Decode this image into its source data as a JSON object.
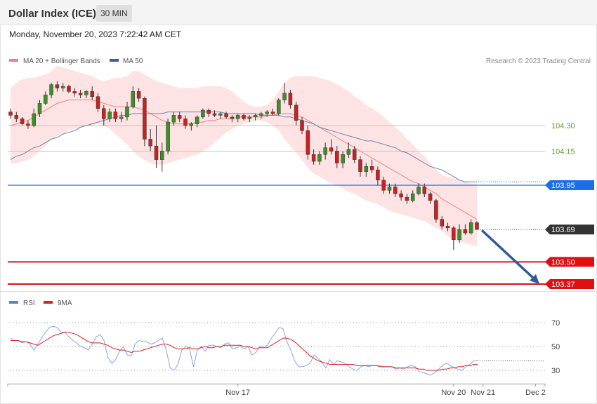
{
  "header": {
    "title": "Dollar Index (ICE)",
    "timeframe": "30 MIN",
    "datetime": "Monday, November 20, 2023 7:22:42 AM CET"
  },
  "legend": {
    "items": [
      {
        "label": "MA 20 + Bollinger Bands",
        "color": "#f08080"
      },
      {
        "label": "MA 50",
        "color": "#3a5f9a"
      }
    ],
    "copyright": "Research © 2023 Trading Central"
  },
  "rsi_legend": {
    "items": [
      {
        "label": "RSI",
        "color": "#5b7fd6"
      },
      {
        "label": "9MA",
        "color": "#e02020"
      }
    ]
  },
  "chart_data": [
    {
      "type": "candlestick",
      "ylim": [
        103.3,
        104.75
      ],
      "price_levels": [
        {
          "value": 104.3,
          "label": "104.30",
          "kind": "target",
          "color": "#5aa02c"
        },
        {
          "value": 104.15,
          "label": "104.15",
          "kind": "target",
          "color": "#5aa02c"
        },
        {
          "value": 103.95,
          "label": "103.95",
          "kind": "pivot",
          "color": "#1a6fe6"
        },
        {
          "value": 103.69,
          "label": "103.69",
          "kind": "last",
          "color": "#333333"
        },
        {
          "value": 103.5,
          "label": "103.50",
          "kind": "support",
          "color": "#e01010"
        },
        {
          "value": 103.37,
          "label": "103.37",
          "kind": "support",
          "color": "#e01010"
        }
      ],
      "forecast_arrow": {
        "from": 103.69,
        "to": 103.37
      },
      "x_tick_labels": [
        {
          "label": "Nov 17",
          "index": 39
        },
        {
          "label": "Nov 20",
          "index": 76
        },
        {
          "label": "Nov 21",
          "index": 89
        },
        {
          "label": "Dec 2",
          "index": 98
        }
      ],
      "candles": [
        [
          104.38,
          104.4,
          104.34,
          104.36
        ],
        [
          104.36,
          104.38,
          104.32,
          104.34
        ],
        [
          104.34,
          104.35,
          104.3,
          104.31
        ],
        [
          104.31,
          104.33,
          104.28,
          104.3
        ],
        [
          104.3,
          104.4,
          104.29,
          104.37
        ],
        [
          104.37,
          104.45,
          104.35,
          104.43
        ],
        [
          104.43,
          104.5,
          104.42,
          104.48
        ],
        [
          104.48,
          104.55,
          104.46,
          104.54
        ],
        [
          104.54,
          104.56,
          104.5,
          104.52
        ],
        [
          104.52,
          104.55,
          104.5,
          104.53
        ],
        [
          104.53,
          104.54,
          104.49,
          104.5
        ],
        [
          104.5,
          104.52,
          104.47,
          104.49
        ],
        [
          104.49,
          104.51,
          104.46,
          104.48
        ],
        [
          104.48,
          104.51,
          104.46,
          104.5
        ],
        [
          104.5,
          104.53,
          104.45,
          104.47
        ],
        [
          104.47,
          104.49,
          104.38,
          104.4
        ],
        [
          104.4,
          104.42,
          104.3,
          104.34
        ],
        [
          104.34,
          104.4,
          104.32,
          104.38
        ],
        [
          104.38,
          104.4,
          104.32,
          104.34
        ],
        [
          104.34,
          104.38,
          104.32,
          104.35
        ],
        [
          104.35,
          104.44,
          104.33,
          104.41
        ],
        [
          104.41,
          104.53,
          104.4,
          104.5
        ],
        [
          104.5,
          104.52,
          104.44,
          104.46
        ],
        [
          104.46,
          104.47,
          104.18,
          104.22
        ],
        [
          104.22,
          104.28,
          104.15,
          104.18
        ],
        [
          104.18,
          104.3,
          104.05,
          104.1
        ],
        [
          104.1,
          104.2,
          104.03,
          104.15
        ],
        [
          104.15,
          104.34,
          104.13,
          104.32
        ],
        [
          104.32,
          104.38,
          104.3,
          104.36
        ],
        [
          104.36,
          104.38,
          104.32,
          104.34
        ],
        [
          104.34,
          104.36,
          104.28,
          104.3
        ],
        [
          104.3,
          104.32,
          104.27,
          104.31
        ],
        [
          104.31,
          104.36,
          104.29,
          104.35
        ],
        [
          104.35,
          104.4,
          104.34,
          104.39
        ],
        [
          104.39,
          104.4,
          104.35,
          104.37
        ],
        [
          104.37,
          104.39,
          104.35,
          104.36
        ],
        [
          104.36,
          104.38,
          104.34,
          104.37
        ],
        [
          104.37,
          104.38,
          104.34,
          104.35
        ],
        [
          104.35,
          104.36,
          104.32,
          104.34
        ],
        [
          104.34,
          104.37,
          104.32,
          104.36
        ],
        [
          104.36,
          104.37,
          104.33,
          104.34
        ],
        [
          104.34,
          104.36,
          104.32,
          104.35
        ],
        [
          104.35,
          104.37,
          104.33,
          104.36
        ],
        [
          104.36,
          104.38,
          104.34,
          104.37
        ],
        [
          104.37,
          104.39,
          104.35,
          104.38
        ],
        [
          104.38,
          104.4,
          104.36,
          104.37
        ],
        [
          104.37,
          104.46,
          104.36,
          104.45
        ],
        [
          104.45,
          104.55,
          104.43,
          104.49
        ],
        [
          104.49,
          104.51,
          104.4,
          104.42
        ],
        [
          104.42,
          104.44,
          104.3,
          104.33
        ],
        [
          104.33,
          104.35,
          104.25,
          104.27
        ],
        [
          104.27,
          104.3,
          104.1,
          104.13
        ],
        [
          104.13,
          104.16,
          104.07,
          104.09
        ],
        [
          104.09,
          104.15,
          104.07,
          104.13
        ],
        [
          104.13,
          104.2,
          104.1,
          104.17
        ],
        [
          104.17,
          104.22,
          104.13,
          104.15
        ],
        [
          104.15,
          104.18,
          104.05,
          104.08
        ],
        [
          104.08,
          104.15,
          104.05,
          104.13
        ],
        [
          104.13,
          104.2,
          104.11,
          104.16
        ],
        [
          104.16,
          104.18,
          104.08,
          104.1
        ],
        [
          104.1,
          104.12,
          104.0,
          104.03
        ],
        [
          104.03,
          104.08,
          104.0,
          104.06
        ],
        [
          104.06,
          104.1,
          104.02,
          104.04
        ],
        [
          104.04,
          104.06,
          103.95,
          103.98
        ],
        [
          103.98,
          104.0,
          103.9,
          103.92
        ],
        [
          103.92,
          103.96,
          103.9,
          103.94
        ],
        [
          103.94,
          103.96,
          103.88,
          103.9
        ],
        [
          103.9,
          103.92,
          103.86,
          103.88
        ],
        [
          103.88,
          103.9,
          103.84,
          103.86
        ],
        [
          103.86,
          103.92,
          103.85,
          103.9
        ],
        [
          103.9,
          103.96,
          103.89,
          103.94
        ],
        [
          103.94,
          103.96,
          103.88,
          103.9
        ],
        [
          103.9,
          103.91,
          103.84,
          103.86
        ],
        [
          103.86,
          103.87,
          103.73,
          103.75
        ],
        [
          103.75,
          103.77,
          103.69,
          103.71
        ],
        [
          103.71,
          103.73,
          103.68,
          103.7
        ],
        [
          103.7,
          103.71,
          103.57,
          103.63
        ],
        [
          103.63,
          103.72,
          103.61,
          103.69
        ],
        [
          103.69,
          103.72,
          103.66,
          103.67
        ],
        [
          103.67,
          103.75,
          103.66,
          103.73
        ],
        [
          103.73,
          103.74,
          103.69,
          103.69
        ]
      ],
      "ma20": [
        104.3,
        104.31,
        104.32,
        104.33,
        104.35,
        104.37,
        104.39,
        104.41,
        104.43,
        104.44,
        104.45,
        104.45,
        104.45,
        104.45,
        104.45,
        104.44,
        104.43,
        104.42,
        104.41,
        104.41,
        104.41,
        104.41,
        104.4,
        104.39,
        104.37,
        104.35,
        104.33,
        104.32,
        104.31,
        104.31,
        104.31,
        104.31,
        104.32,
        104.32,
        104.33,
        104.33,
        104.34,
        104.34,
        104.34,
        104.35,
        104.35,
        104.35,
        104.35,
        104.35,
        104.36,
        104.36,
        104.37,
        104.37,
        104.37,
        104.36,
        104.35,
        104.33,
        104.31,
        104.29,
        104.27,
        104.25,
        104.23,
        104.21,
        104.19,
        104.17,
        104.15,
        104.13,
        104.11,
        104.09,
        104.07,
        104.05,
        104.03,
        104.01,
        103.99,
        103.97,
        103.96,
        103.94,
        103.92,
        103.9,
        103.87,
        103.85,
        103.83,
        103.81,
        103.79,
        103.77,
        103.75
      ],
      "bb_upper": [
        104.52,
        104.55,
        104.57,
        104.58,
        104.58,
        104.59,
        104.6,
        104.62,
        104.65,
        104.64,
        104.63,
        104.62,
        104.61,
        104.6,
        104.59,
        104.57,
        104.56,
        104.57,
        104.58,
        104.58,
        104.59,
        104.62,
        104.62,
        104.6,
        104.58,
        104.56,
        104.55,
        104.54,
        104.53,
        104.52,
        104.52,
        104.52,
        104.52,
        104.53,
        104.53,
        104.53,
        104.53,
        104.52,
        104.5,
        104.47,
        104.44,
        104.42,
        104.41,
        104.41,
        104.42,
        104.45,
        104.5,
        104.55,
        104.58,
        104.59,
        104.59,
        104.59,
        104.59,
        104.58,
        104.57,
        104.56,
        104.54,
        104.52,
        104.5,
        104.47,
        104.45,
        104.42,
        104.4,
        104.38,
        104.35,
        104.32,
        104.29,
        104.26,
        104.22,
        104.19,
        104.15,
        104.12,
        104.08,
        104.04,
        104.01,
        104.0,
        103.99,
        103.98,
        103.97,
        103.96,
        103.96
      ],
      "bb_lower": [
        104.08,
        104.08,
        104.09,
        104.1,
        104.12,
        104.15,
        104.18,
        104.22,
        104.24,
        104.25,
        104.27,
        104.28,
        104.29,
        104.3,
        104.3,
        104.31,
        104.3,
        104.28,
        104.25,
        104.22,
        104.19,
        104.15,
        104.12,
        104.1,
        104.08,
        104.07,
        104.07,
        104.08,
        104.09,
        104.1,
        104.11,
        104.12,
        104.13,
        104.15,
        104.17,
        104.2,
        104.23,
        104.26,
        104.28,
        104.3,
        104.31,
        104.32,
        104.33,
        104.33,
        104.32,
        104.3,
        104.27,
        104.22,
        104.18,
        104.14,
        104.1,
        104.05,
        104.02,
        104.0,
        103.98,
        103.96,
        103.95,
        103.93,
        103.91,
        103.9,
        103.88,
        103.86,
        103.85,
        103.84,
        103.82,
        103.8,
        103.79,
        103.78,
        103.77,
        103.76,
        103.75,
        103.74,
        103.72,
        103.7,
        103.68,
        103.65,
        103.63,
        103.62,
        103.61,
        103.6,
        103.59
      ],
      "ma50": [
        104.1,
        104.12,
        104.13,
        104.15,
        104.17,
        104.18,
        104.2,
        104.22,
        104.23,
        104.25,
        104.26,
        104.27,
        104.29,
        104.3,
        104.31,
        104.32,
        104.33,
        104.34,
        104.35,
        104.36,
        104.36,
        104.37,
        104.37,
        104.37,
        104.37,
        104.37,
        104.37,
        104.38,
        104.38,
        104.38,
        104.38,
        104.38,
        104.38,
        104.38,
        104.38,
        104.38,
        104.38,
        104.37,
        104.37,
        104.37,
        104.37,
        104.37,
        104.37,
        104.36,
        104.36,
        104.36,
        104.36,
        104.35,
        104.35,
        104.34,
        104.33,
        104.32,
        104.31,
        104.29,
        104.28,
        104.27,
        104.26,
        104.25,
        104.24,
        104.23,
        104.22,
        104.21,
        104.21,
        104.2,
        104.19,
        104.18,
        104.17,
        104.15,
        104.14,
        104.12,
        104.1,
        104.08,
        104.06,
        104.05,
        104.04,
        104.02,
        104.0,
        103.98,
        103.97,
        103.97,
        103.97
      ]
    },
    {
      "type": "line",
      "title": "RSI",
      "ylim": [
        15,
        85
      ],
      "hlines": [
        70,
        50,
        30
      ],
      "rsi": [
        57,
        55,
        55,
        53,
        54,
        52,
        47,
        52,
        57,
        62,
        66,
        67,
        66,
        62,
        62,
        58,
        55,
        53,
        50,
        49,
        47,
        52,
        58,
        60,
        55,
        41,
        36,
        39,
        46,
        50,
        43,
        42,
        52,
        55,
        54,
        54,
        52,
        53,
        55,
        57,
        47,
        32,
        30,
        35,
        47,
        50,
        48,
        33,
        47,
        50,
        46,
        51,
        51,
        50,
        49,
        52,
        53,
        48,
        49,
        50,
        48,
        50,
        43,
        45,
        50,
        50,
        51,
        57,
        61,
        66,
        65,
        54,
        47,
        38,
        33,
        33,
        34,
        36,
        43,
        40,
        37,
        32,
        39,
        35,
        38,
        37,
        36,
        33,
        31,
        30,
        33,
        34,
        33,
        34,
        34,
        34,
        33,
        33,
        33,
        31,
        32,
        31,
        33,
        34,
        33,
        29,
        28,
        27,
        26,
        28,
        31,
        34,
        36,
        34,
        32,
        31,
        30,
        33,
        35,
        38,
        38
      ],
      "ma9": [
        55,
        55,
        55,
        54,
        54,
        53,
        52,
        51,
        53,
        55,
        57,
        59,
        60,
        61,
        62,
        62,
        61,
        60,
        58,
        56,
        54,
        53,
        53,
        53,
        52,
        51,
        49,
        48,
        47,
        47,
        46,
        45,
        46,
        46,
        47,
        48,
        49,
        50,
        51,
        52,
        52,
        51,
        49,
        48,
        48,
        48,
        49,
        48,
        48,
        49,
        50,
        49,
        49,
        50,
        50,
        51,
        51,
        51,
        51,
        51,
        50,
        50,
        49,
        48,
        49,
        49,
        49,
        51,
        53,
        55,
        57,
        57,
        56,
        54,
        51,
        48,
        45,
        42,
        40,
        38,
        37,
        36,
        35,
        35,
        35,
        35,
        35,
        35,
        35,
        34,
        34,
        34,
        34,
        34,
        34,
        33,
        33,
        33,
        33,
        32,
        32,
        32,
        32,
        32,
        32,
        31,
        31,
        30,
        30,
        30,
        30,
        31,
        31,
        32,
        32,
        33,
        33,
        34,
        34,
        35,
        35
      ]
    }
  ]
}
